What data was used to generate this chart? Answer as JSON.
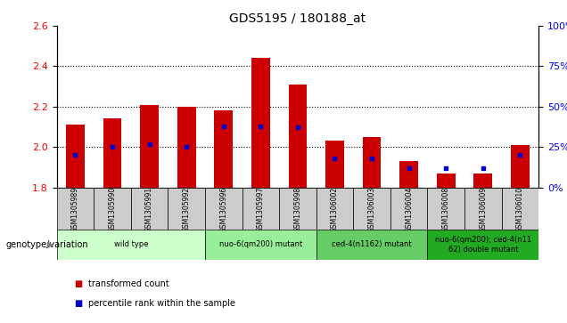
{
  "title": "GDS5195 / 180188_at",
  "samples": [
    "GSM1305989",
    "GSM1305990",
    "GSM1305991",
    "GSM1305992",
    "GSM1305996",
    "GSM1305997",
    "GSM1305998",
    "GSM1306002",
    "GSM1306003",
    "GSM1306004",
    "GSM1306008",
    "GSM1306009",
    "GSM1306010"
  ],
  "transformed_count": [
    2.11,
    2.14,
    2.21,
    2.2,
    2.18,
    2.44,
    2.31,
    2.03,
    2.05,
    1.93,
    1.87,
    1.87,
    2.01
  ],
  "percentile_rank": [
    20,
    25,
    27,
    25,
    38,
    38,
    37,
    18,
    18,
    12,
    12,
    12,
    20
  ],
  "ylim_left": [
    1.8,
    2.6
  ],
  "ylim_right": [
    0,
    100
  ],
  "yticks_left": [
    1.8,
    2.0,
    2.2,
    2.4,
    2.6
  ],
  "yticks_right": [
    0,
    25,
    50,
    75,
    100
  ],
  "groups": [
    {
      "label": "wild type",
      "indices": [
        0,
        1,
        2,
        3
      ],
      "color": "#ccffcc"
    },
    {
      "label": "nuo-6(qm200) mutant",
      "indices": [
        4,
        5,
        6
      ],
      "color": "#99ee99"
    },
    {
      "label": "ced-4(n1162) mutant",
      "indices": [
        7,
        8,
        9
      ],
      "color": "#66cc66"
    },
    {
      "label": "nuo-6(qm200); ced-4(n11\n62) double mutant",
      "indices": [
        10,
        11,
        12
      ],
      "color": "#22aa22"
    }
  ],
  "bar_color": "#cc0000",
  "dot_color": "#0000cc",
  "bar_bottom": 1.8,
  "legend_items": [
    {
      "label": "transformed count",
      "color": "#cc0000"
    },
    {
      "label": "percentile rank within the sample",
      "color": "#0000cc"
    }
  ],
  "xlabel_genotype": "genotype/variation",
  "title_fontsize": 10,
  "tick_fontsize": 8,
  "sample_box_color": "#cccccc",
  "bar_width": 0.5
}
